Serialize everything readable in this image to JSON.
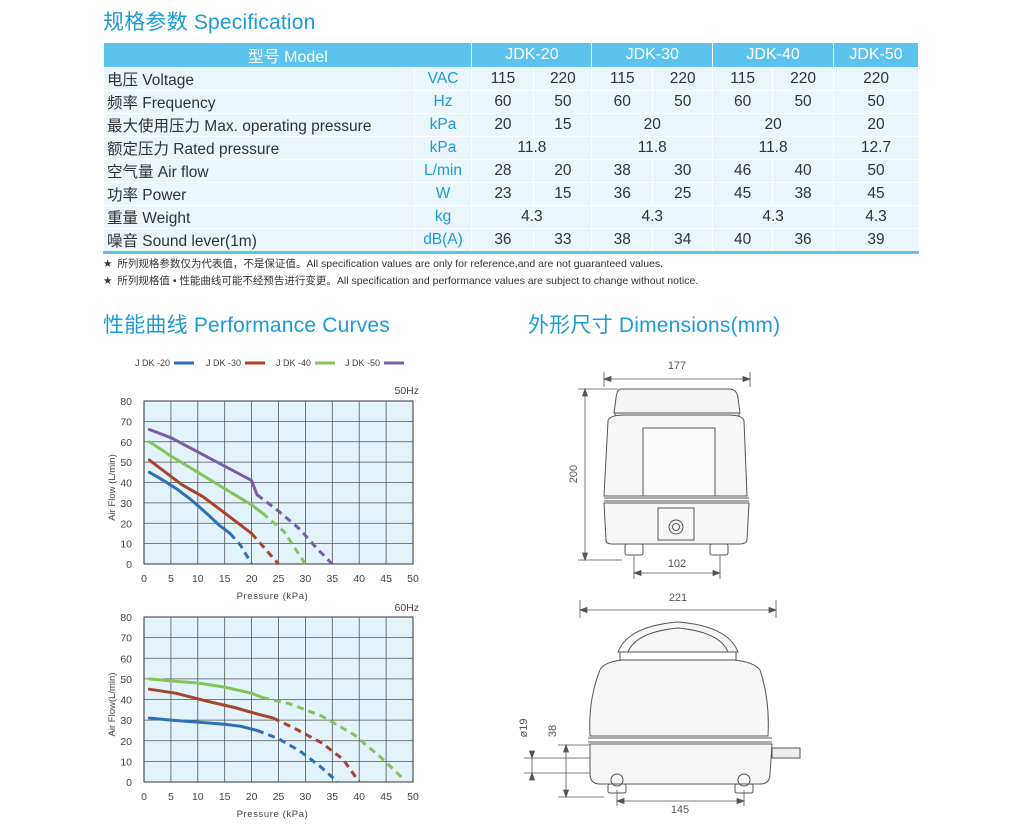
{
  "spec_title": "规格参数 Specification",
  "spec_table": {
    "header": {
      "model_label": "型号 Model",
      "models": [
        "JDK-20",
        "JDK-30",
        "JDK-40",
        "JDK-50"
      ]
    },
    "rows": [
      {
        "name": "电压 Voltage",
        "unit": "VAC",
        "cells": [
          [
            "115",
            1
          ],
          [
            "220",
            1
          ],
          [
            "115",
            1
          ],
          [
            "220",
            1
          ],
          [
            "115",
            1
          ],
          [
            "220",
            1
          ],
          [
            "220",
            1
          ]
        ]
      },
      {
        "name": "频率 Frequency",
        "unit": "Hz",
        "cells": [
          [
            "60",
            1
          ],
          [
            "50",
            1
          ],
          [
            "60",
            1
          ],
          [
            "50",
            1
          ],
          [
            "60",
            1
          ],
          [
            "50",
            1
          ],
          [
            "50",
            1
          ]
        ]
      },
      {
        "name": "最大使用压力 Max. operating pressure",
        "unit": "kPa",
        "cells": [
          [
            "20",
            1
          ],
          [
            "15",
            1
          ],
          [
            "20",
            2
          ],
          [
            "20",
            2
          ],
          [
            "20",
            1
          ]
        ]
      },
      {
        "name": "额定压力 Rated pressure",
        "unit": "kPa",
        "cells": [
          [
            "11.8",
            2
          ],
          [
            "11.8",
            2
          ],
          [
            "11.8",
            2
          ],
          [
            "12.7",
            1
          ]
        ]
      },
      {
        "name": "空气量 Air flow",
        "unit": "L/min",
        "cells": [
          [
            "28",
            1
          ],
          [
            "20",
            1
          ],
          [
            "38",
            1
          ],
          [
            "30",
            1
          ],
          [
            "46",
            1
          ],
          [
            "40",
            1
          ],
          [
            "50",
            1
          ]
        ]
      },
      {
        "name": "功率 Power",
        "unit": "W",
        "cells": [
          [
            "23",
            1
          ],
          [
            "15",
            1
          ],
          [
            "36",
            1
          ],
          [
            "25",
            1
          ],
          [
            "45",
            1
          ],
          [
            "38",
            1
          ],
          [
            "45",
            1
          ]
        ]
      },
      {
        "name": "重量 Weight",
        "unit": "kg",
        "cells": [
          [
            "4.3",
            2
          ],
          [
            "4.3",
            2
          ],
          [
            "4.3",
            2
          ],
          [
            "4.3",
            1
          ]
        ]
      },
      {
        "name": "噪音 Sound lever(1m)",
        "unit": "dB(A)",
        "cells": [
          [
            "36",
            1
          ],
          [
            "33",
            1
          ],
          [
            "38",
            1
          ],
          [
            "34",
            1
          ],
          [
            "40",
            1
          ],
          [
            "36",
            1
          ],
          [
            "39",
            1
          ]
        ]
      }
    ]
  },
  "notes": [
    "所列规格参数仅为代表值，不是保证值。All specification values are only for reference,and are not guaranteed values.",
    "所列规格值 • 性能曲线可能不经预告进行变更。All specification and performance values are subject to change without notice."
  ],
  "note_marker": "★",
  "curves_title": "性能曲线 Performance Curves",
  "dims_title": "外形尺寸 Dimensions(mm)",
  "legend": [
    {
      "label": "JDK-20",
      "color": "#2e6fb5"
    },
    {
      "label": "JDK-30",
      "color": "#a8432d"
    },
    {
      "label": "JDK-40",
      "color": "#86c35a"
    },
    {
      "label": "JDK-50",
      "color": "#7b5ca8"
    }
  ],
  "legend_labels_display": [
    "J DK -20",
    "J DK -30",
    "J DK -40",
    "J DK -50"
  ],
  "chart_data": [
    {
      "type": "line",
      "title": "50Hz",
      "xlabel": "Pressure (kPa)",
      "ylabel": "Air Flow (L/min)",
      "xlim": [
        0,
        50
      ],
      "ylim": [
        0,
        80
      ],
      "xticks": [
        0,
        5,
        10,
        15,
        20,
        25,
        30,
        35,
        40,
        45,
        50
      ],
      "yticks": [
        0,
        10,
        20,
        30,
        40,
        50,
        60,
        70,
        80
      ],
      "grid": true,
      "series": [
        {
          "name": "JDK-20",
          "color": "#2e6fb5",
          "solid": [
            [
              1,
              45
            ],
            [
              3,
              42
            ],
            [
              6,
              37
            ],
            [
              9,
              31
            ],
            [
              12,
              24
            ],
            [
              14,
              19
            ],
            [
              16,
              15
            ]
          ],
          "dashed": [
            [
              16,
              15
            ],
            [
              18,
              9
            ],
            [
              20,
              0
            ]
          ]
        },
        {
          "name": "JDK-30",
          "color": "#a8432d",
          "solid": [
            [
              1,
              51
            ],
            [
              4,
              45
            ],
            [
              7,
              39
            ],
            [
              11,
              33
            ],
            [
              14,
              27
            ],
            [
              17,
              21
            ],
            [
              20,
              15
            ]
          ],
          "dashed": [
            [
              20,
              15
            ],
            [
              22,
              9
            ],
            [
              25,
              0
            ]
          ]
        },
        {
          "name": "JDK-40",
          "color": "#86c35a",
          "solid": [
            [
              1,
              60
            ],
            [
              5,
              53
            ],
            [
              10,
              45
            ],
            [
              15,
              37
            ],
            [
              20,
              29
            ],
            [
              22,
              25
            ]
          ],
          "dashed": [
            [
              22,
              25
            ],
            [
              26,
              16
            ],
            [
              30,
              0
            ]
          ]
        },
        {
          "name": "JDK-50",
          "color": "#7b5ca8",
          "solid": [
            [
              1,
              66
            ],
            [
              5,
              62
            ],
            [
              10,
              55
            ],
            [
              15,
              48
            ],
            [
              20,
              41
            ],
            [
              21,
              34
            ]
          ],
          "dashed": [
            [
              21,
              34
            ],
            [
              25,
              26
            ],
            [
              29,
              17
            ],
            [
              32,
              8
            ],
            [
              35,
              0
            ]
          ]
        }
      ]
    },
    {
      "type": "line",
      "title": "60Hz",
      "xlabel": "Pressure (kPa)",
      "ylabel": "Air Flow(L/min)",
      "xlim": [
        0,
        50
      ],
      "ylim": [
        0,
        80
      ],
      "xticks": [
        0,
        5,
        10,
        15,
        20,
        25,
        30,
        35,
        40,
        45,
        50
      ],
      "yticks": [
        0,
        10,
        20,
        30,
        40,
        50,
        60,
        70,
        80
      ],
      "grid": true,
      "series": [
        {
          "name": "JDK-20",
          "color": "#2e6fb5",
          "solid": [
            [
              1,
              31
            ],
            [
              5,
              30
            ],
            [
              10,
              29
            ],
            [
              15,
              28
            ],
            [
              18,
              27
            ],
            [
              21,
              25
            ]
          ],
          "dashed": [
            [
              21,
              25
            ],
            [
              25,
              21
            ],
            [
              29,
              15
            ],
            [
              33,
              7
            ],
            [
              36,
              0
            ]
          ]
        },
        {
          "name": "JDK-30",
          "color": "#a8432d",
          "solid": [
            [
              1,
              45
            ],
            [
              6,
              43
            ],
            [
              12,
              39
            ],
            [
              17,
              36
            ],
            [
              21,
              33
            ],
            [
              24,
              31
            ]
          ],
          "dashed": [
            [
              24,
              31
            ],
            [
              28,
              26
            ],
            [
              33,
              19
            ],
            [
              37,
              11
            ],
            [
              40,
              0
            ]
          ]
        },
        {
          "name": "JDK-40",
          "color": "#86c35a",
          "solid": [
            [
              1,
              50
            ],
            [
              5,
              49
            ],
            [
              10,
              48
            ],
            [
              15,
              46
            ],
            [
              20,
              43
            ],
            [
              22,
              41
            ]
          ],
          "dashed": [
            [
              22,
              41
            ],
            [
              27,
              38
            ],
            [
              33,
              32
            ],
            [
              39,
              23
            ],
            [
              44,
              12
            ],
            [
              48,
              2
            ]
          ]
        }
      ]
    }
  ],
  "chart_text": {
    "hz50": "50Hz",
    "hz60": "60Hz",
    "xlabel_display": "Pressure (kPa)",
    "ylabel_top_display": "Air  Flow (L/min)",
    "ylabel_bottom_display": "Air Flow(L/min)"
  },
  "dimensions": {
    "front": {
      "width": "177",
      "height": "200",
      "base": "102"
    },
    "side": {
      "width": "221",
      "foot_height": "38",
      "port": "ø19",
      "base": "145"
    }
  }
}
